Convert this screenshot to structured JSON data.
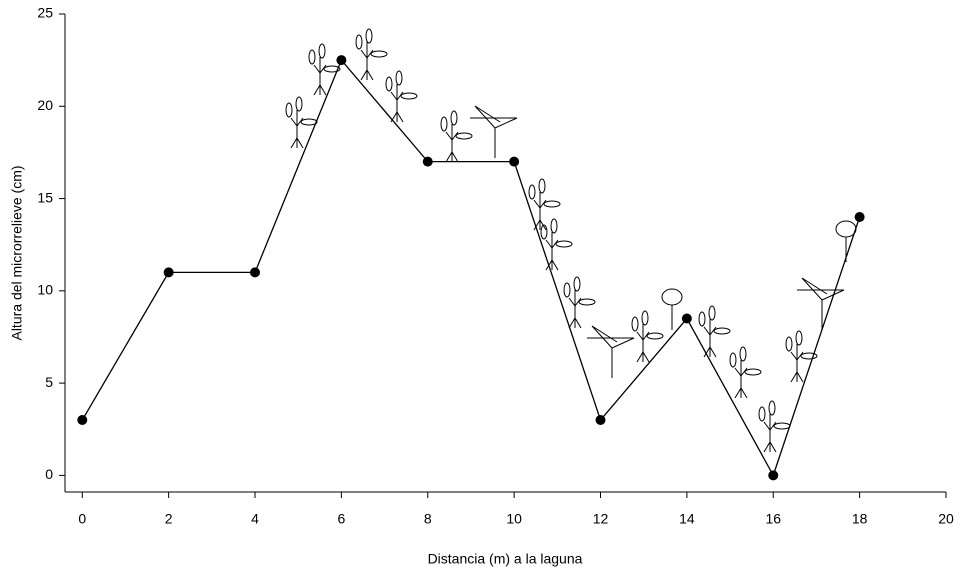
{
  "chart_data": {
    "type": "line",
    "x_label": "Distancia (m) a la laguna",
    "y_label": "Altura del microrrelieve (cm)",
    "x": [
      0,
      2,
      4,
      6,
      8,
      10,
      12,
      14,
      16,
      18
    ],
    "series": [
      {
        "color": "#000000",
        "values": [
          3,
          11,
          11,
          22.5,
          17,
          17,
          3,
          8.5,
          0,
          14
        ]
      }
    ],
    "xlim": [
      -0.4,
      20
    ],
    "ylim": [
      -0.9,
      25
    ],
    "xticks": [
      0,
      2,
      4,
      6,
      8,
      10,
      12,
      14,
      16,
      18,
      20
    ],
    "yticks": [
      0,
      5,
      10,
      15,
      20,
      25
    ],
    "grid": false
  }
}
